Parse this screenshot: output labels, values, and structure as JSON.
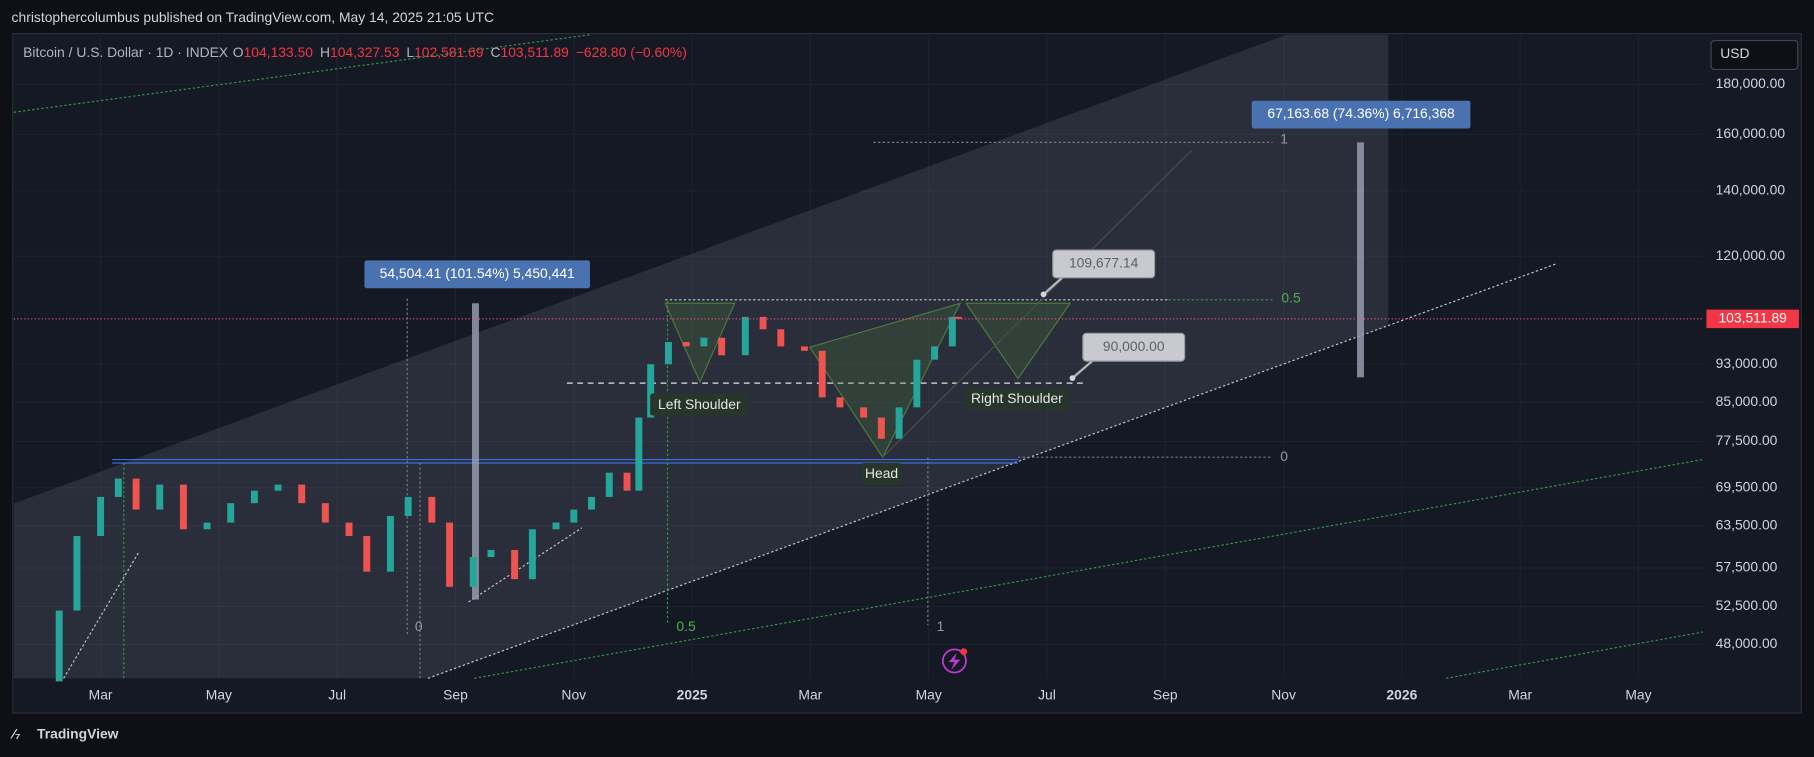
{
  "header": "christophercolumbus published on TradingView.com, May 14, 2025 21:05 UTC",
  "footer": "TradingView",
  "currency_button": "USD",
  "chart_data": {
    "type": "candlestick",
    "title": "Bitcoin / U.S. Dollar · 1D · INDEX",
    "legend": [
      {
        "key": "O",
        "value": "104,133.50"
      },
      {
        "key": "H",
        "value": "104,327.53"
      },
      {
        "key": "L",
        "value": "102,581.69"
      },
      {
        "key": "C",
        "value": "103,511.89"
      }
    ],
    "change": "−628.80 (−0.60%)",
    "y_scale": "log",
    "grid": true,
    "ylim": [
      44320,
      202400
    ],
    "yticks": [
      {
        "value": 180000,
        "label": "180,000.00"
      },
      {
        "value": 160000,
        "label": "160,000.00"
      },
      {
        "value": 140000,
        "label": "140,000.00"
      },
      {
        "value": 120000,
        "label": "120,000.00"
      },
      {
        "value": 93000,
        "label": "93,000.00"
      },
      {
        "value": 85000,
        "label": "85,000.00"
      },
      {
        "value": 77500,
        "label": "77,500.00"
      },
      {
        "value": 69500,
        "label": "69,500.00"
      },
      {
        "value": 63500,
        "label": "63,500.00"
      },
      {
        "value": 57500,
        "label": "57,500.00"
      },
      {
        "value": 52500,
        "label": "52,500.00"
      },
      {
        "value": 48000,
        "label": "48,000.00"
      }
    ],
    "xlim": [
      0.534,
      29.09
    ],
    "xticks": [
      {
        "value": 2,
        "label": "Mar"
      },
      {
        "value": 4,
        "label": "May"
      },
      {
        "value": 6,
        "label": "Jul"
      },
      {
        "value": 8,
        "label": "Sep"
      },
      {
        "value": 10,
        "label": "Nov"
      },
      {
        "value": 12,
        "label": "2025"
      },
      {
        "value": 14,
        "label": "Mar"
      },
      {
        "value": 16,
        "label": "May"
      },
      {
        "value": 18,
        "label": "Jul"
      },
      {
        "value": 20,
        "label": "Sep"
      },
      {
        "value": 22,
        "label": "Nov"
      },
      {
        "value": 24,
        "label": "2026"
      },
      {
        "value": 26,
        "label": "Mar"
      },
      {
        "value": 28,
        "label": "May"
      }
    ],
    "x": [
      0.9,
      1.3,
      1.6,
      2.0,
      2.3,
      2.6,
      3.0,
      3.4,
      3.8,
      4.2,
      4.6,
      5.0,
      5.4,
      5.8,
      6.2,
      6.5,
      6.9,
      7.2,
      7.6,
      7.9,
      8.3,
      8.6,
      9.0,
      9.3,
      9.7,
      10.0,
      10.3,
      10.6,
      10.9,
      11.1,
      11.3,
      11.6,
      11.9,
      12.2,
      12.5,
      12.9,
      13.2,
      13.5,
      13.9,
      14.2,
      14.5,
      14.9,
      15.2,
      15.5,
      15.8,
      16.1,
      16.4,
      16.5
    ],
    "close": [
      44000,
      52000,
      62000,
      68000,
      71000,
      66000,
      70000,
      63000,
      64000,
      67000,
      69000,
      70000,
      67000,
      64000,
      62000,
      57000,
      65000,
      68000,
      64000,
      55000,
      59000,
      60000,
      56000,
      63000,
      64000,
      66000,
      68000,
      72000,
      69000,
      82000,
      93000,
      98000,
      97000,
      99000,
      95000,
      104000,
      101000,
      97000,
      96000,
      86000,
      84000,
      82000,
      78000,
      84000,
      94000,
      97000,
      104000,
      103511.89
    ],
    "last_price": {
      "value": 103511.89,
      "label": "103,511.89"
    },
    "measures": [
      "54,504.41 (101.54%) 5,450,441",
      "67,163.68 (74.36%) 6,716,368"
    ],
    "price_labels": [
      {
        "value": 109677.14,
        "label": "109,677.14"
      },
      {
        "value": 90000,
        "label": "90,000.00"
      }
    ],
    "pattern_labels": [
      "Left Shoulder",
      "Head",
      "Right Shoulder"
    ],
    "fib_right": [
      "1",
      "0.5",
      "0"
    ],
    "fib_bottom": [
      "0",
      "0.5",
      "1"
    ]
  }
}
